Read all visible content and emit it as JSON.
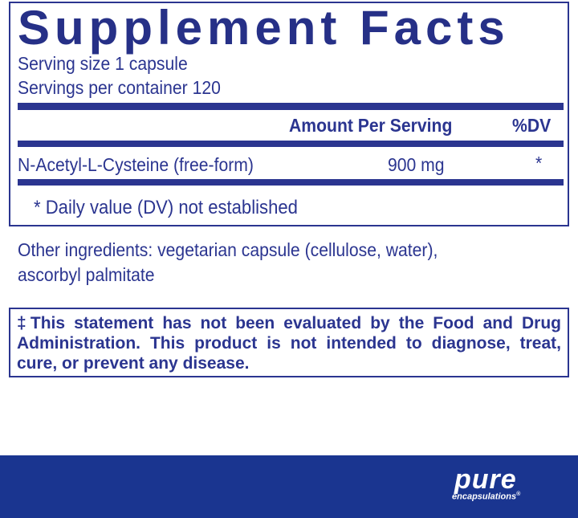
{
  "title": "Supplement Facts",
  "serving_size": "Serving size  1 capsule",
  "servings_per_container": "Servings per container  120",
  "header": {
    "amount": "Amount Per Serving",
    "dv": "%DV"
  },
  "rows": [
    {
      "name": "N-Acetyl-L-Cysteine (free-form)",
      "amount": "900 mg",
      "dv": "*"
    }
  ],
  "footnote": "* Daily value (DV) not established",
  "other_ingredients": [
    "Other ingredients:  vegetarian capsule (cellulose, water),",
    "ascorbyl palmitate"
  ],
  "disclaimer": "‡This statement has not been evaluated by the Food and Drug Administration. This product is not intended to diagnose, treat, cure, or prevent any disease.",
  "brand": {
    "name": "pure",
    "sub": "encapsulations",
    "mark": "®",
    "color": "#1a3590"
  },
  "colors": {
    "text": "#2b3590"
  }
}
